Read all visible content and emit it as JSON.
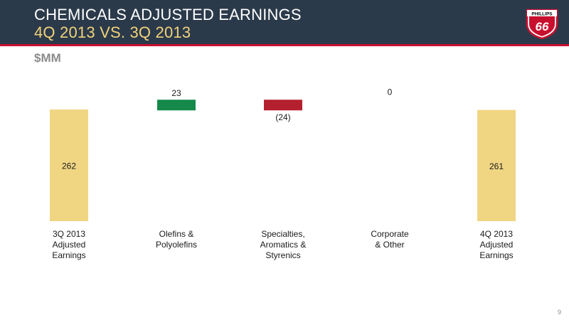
{
  "header": {
    "title": "CHEMICALS ADJUSTED EARNINGS",
    "subtitle": "4Q 2013 VS. 3Q 2013",
    "colors": {
      "background": "#2b3a4a",
      "accent_rule": "#c8102e",
      "subtitle": "#f2d27a"
    }
  },
  "logo": {
    "text": "PHILLIPS",
    "number": "66"
  },
  "unit_label": "$MM",
  "page_number": "9",
  "chart_data": {
    "type": "bar",
    "subtype": "waterfall",
    "categories": [
      "3Q 2013\nAdjusted\nEarnings",
      "Olefins &\nPolyolefins",
      "Specialties,\nAromatics &\nStyrenics",
      "Corporate\n& Other",
      "4Q 2013\nAdjusted\nEarnings"
    ],
    "values": [
      262,
      23,
      -24,
      0,
      261
    ],
    "data_labels": [
      "262",
      "23",
      "(24)",
      "0",
      "261"
    ],
    "bar_kinds": [
      "total",
      "delta",
      "delta",
      "delta",
      "total"
    ],
    "ylim": [
      0,
      300
    ],
    "grid": false,
    "legend": "none",
    "colors": {
      "total": "#f0d583",
      "increase": "#14894a",
      "decrease": "#b5202e"
    }
  }
}
